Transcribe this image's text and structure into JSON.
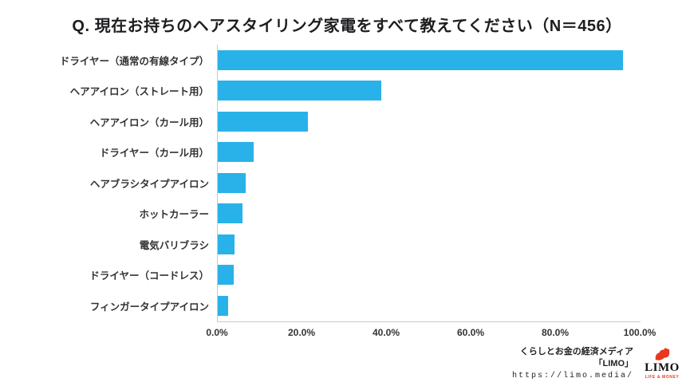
{
  "title": "Q. 現在お持ちのヘアスタイリング家電をすべて教えてください（N＝456）",
  "chart_data": {
    "type": "bar",
    "orientation": "horizontal",
    "title": "Q. 現在お持ちのヘアスタイリング家電をすべて教えてください（N＝456）",
    "categories": [
      "ドライヤー（通常の有線タイプ）",
      "ヘアアイロン（ストレート用）",
      "ヘアアイロン（カール用）",
      "ドライヤー（カール用）",
      "ヘアブラシタイプアイロン",
      "ホットカーラー",
      "電気バリブラシ",
      "ドライヤー（コードレス）",
      "フィンガータイプアイロン"
    ],
    "values": [
      96.1,
      38.8,
      21.5,
      8.6,
      6.8,
      6.1,
      4.2,
      3.9,
      2.6
    ],
    "x_ticks": [
      "0.0%",
      "20.0%",
      "40.0%",
      "60.0%",
      "80.0%",
      "100.0%"
    ],
    "x_tick_values": [
      0,
      20,
      40,
      60,
      80,
      100
    ],
    "xlim": [
      0,
      100
    ],
    "bar_color": "#29b2e9",
    "grid": false,
    "legend": false
  },
  "footer": {
    "tagline": "くらしとお金の経済メディア",
    "brand_quoted": "「LIMO」",
    "url": "https://limo.media/",
    "logo_text": "LIMO",
    "logo_subtext": "LIFE & MONEY",
    "logo_color": "#e8381f"
  }
}
